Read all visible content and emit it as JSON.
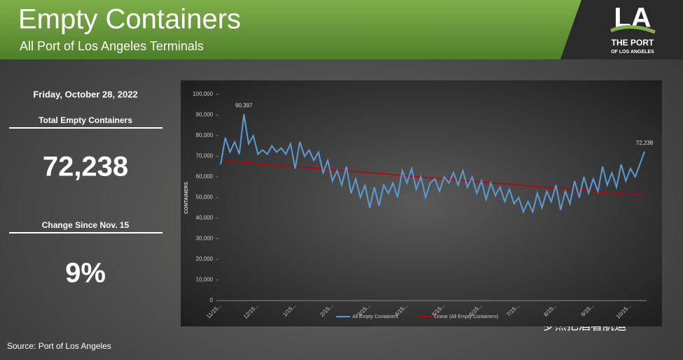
{
  "header": {
    "title": "Empty Containers",
    "subtitle": "All Port of Los Angeles Terminals",
    "logo": {
      "mark": "LA",
      "line1": "THE PORT",
      "line2": "OF LOS ANGELES"
    }
  },
  "sidebar": {
    "date": "Friday, October 28, 2022",
    "total_label": "Total Empty Containers",
    "total_value": "72,238",
    "change_label": "Change Since Nov. 15",
    "change_value": "9%"
  },
  "source": "Source: Port of Los Angeles",
  "watermark": "罗杰把酒看航运",
  "chart_data": {
    "type": "line",
    "y_label": "CONTAINERS",
    "ylim": [
      0,
      100000
    ],
    "yticks": [
      0,
      {
        "value": 10000,
        "label": "10,000"
      },
      {
        "value": 20000,
        "label": "20,000"
      },
      {
        "value": 30000,
        "label": "30,000"
      },
      {
        "value": 40000,
        "label": "40,000"
      },
      {
        "value": 50000,
        "label": "50,000"
      },
      {
        "value": 60000,
        "label": "60,000"
      },
      {
        "value": 70000,
        "label": "70,000"
      },
      {
        "value": 80000,
        "label": "80,000"
      },
      {
        "value": 90000,
        "label": "90,000"
      },
      {
        "value": 100000,
        "label": "100,000"
      }
    ],
    "categories": [
      "11/15...",
      null,
      null,
      null,
      null,
      null,
      null,
      null,
      "12/15...",
      null,
      null,
      null,
      null,
      null,
      null,
      null,
      "1/15...",
      null,
      null,
      null,
      null,
      null,
      null,
      null,
      "2/15...",
      null,
      null,
      null,
      null,
      null,
      null,
      null,
      "3/15...",
      null,
      null,
      null,
      null,
      null,
      null,
      null,
      "4/15...",
      null,
      null,
      null,
      null,
      null,
      null,
      null,
      "5/15...",
      null,
      null,
      null,
      null,
      null,
      null,
      null,
      "6/15...",
      null,
      null,
      null,
      null,
      null,
      null,
      null,
      "7/15...",
      null,
      null,
      null,
      null,
      null,
      null,
      null,
      "8/15...",
      null,
      null,
      null,
      null,
      null,
      null,
      null,
      "9/15...",
      null,
      null,
      null,
      null,
      null,
      null,
      null,
      "10/15...",
      null,
      null,
      null
    ],
    "series": [
      {
        "name": "All Empty Containers",
        "color": "#5b9bd5",
        "values": [
          66000,
          79000,
          72000,
          77000,
          71000,
          90397,
          76000,
          80000,
          71000,
          73000,
          71000,
          75000,
          72000,
          74000,
          71000,
          76000,
          64000,
          77000,
          70000,
          73000,
          68000,
          72000,
          62000,
          68000,
          58000,
          63000,
          56000,
          65000,
          52000,
          59000,
          50000,
          56000,
          45000,
          55000,
          46000,
          56000,
          52000,
          57000,
          50000,
          63000,
          57000,
          64000,
          54000,
          60000,
          50000,
          57000,
          59000,
          53000,
          60000,
          57000,
          62000,
          56000,
          63000,
          55000,
          60000,
          52000,
          58000,
          49000,
          57000,
          51000,
          55000,
          48000,
          54000,
          47000,
          50000,
          43000,
          48000,
          43000,
          52000,
          45000,
          53000,
          48000,
          56000,
          44000,
          53000,
          47000,
          58000,
          50000,
          60000,
          52000,
          59000,
          53000,
          65000,
          56000,
          62000,
          55000,
          66000,
          58000,
          64000,
          60000,
          66000,
          72238
        ],
        "value_labels": [
          null,
          null,
          null,
          null,
          null,
          "90,397",
          null,
          null,
          null,
          null,
          null,
          null,
          null,
          null,
          null,
          null,
          null,
          null,
          null,
          null,
          null,
          null,
          null,
          null,
          null,
          null,
          null,
          null,
          null,
          null,
          null,
          null,
          null,
          null,
          null,
          null,
          null,
          null,
          null,
          null,
          null,
          null,
          null,
          null,
          null,
          null,
          null,
          null,
          null,
          null,
          null,
          null,
          null,
          null,
          null,
          null,
          null,
          null,
          null,
          null,
          null,
          null,
          null,
          null,
          null,
          null,
          null,
          null,
          null,
          null,
          null,
          null,
          null,
          null,
          null,
          null,
          null,
          null,
          null,
          null,
          null,
          null,
          null,
          null,
          null,
          null,
          null,
          null,
          null,
          null,
          null,
          "72,238"
        ]
      }
    ],
    "trendline": {
      "name": "Linear (All Empty Containers)",
      "color": "#c00000",
      "start": 68000,
      "end": 51000
    }
  }
}
